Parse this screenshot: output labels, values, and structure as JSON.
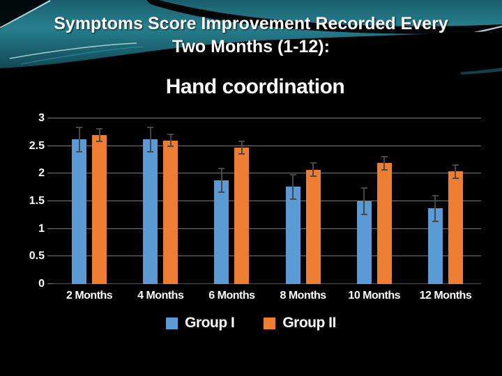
{
  "slide": {
    "title_line1": "Symptoms Score Improvement Recorded Every",
    "title_line2": "Two Months (1-12):"
  },
  "chart_data": {
    "type": "bar",
    "title": "Hand coordination",
    "categories": [
      "2 Months",
      "4 Months",
      "6 Months",
      "8 Months",
      "10 Months",
      "12 Months"
    ],
    "series": [
      {
        "name": "Group I",
        "color": "#5B9BD5",
        "values": [
          2.62,
          2.62,
          1.88,
          1.76,
          1.5,
          1.37
        ],
        "errors": [
          0.22,
          0.22,
          0.21,
          0.22,
          0.24,
          0.23
        ]
      },
      {
        "name": "Group II",
        "color": "#ED7D31",
        "values": [
          2.7,
          2.6,
          2.47,
          2.07,
          2.19,
          2.04
        ],
        "errors": [
          0.11,
          0.11,
          0.11,
          0.12,
          0.12,
          0.12
        ]
      }
    ],
    "xlabel": "",
    "ylabel": "",
    "ylim": [
      0,
      3
    ],
    "ytick_step": 0.5,
    "ytick_labels": [
      "3",
      "2.5",
      "2",
      "1.5",
      "1",
      "0.5",
      "0"
    ],
    "grid": true,
    "legend_position": "bottom",
    "error_bar_color": "#474747",
    "grid_color": "#7a7a7a",
    "text_color": "#ffffff",
    "background_color": "#000000"
  }
}
